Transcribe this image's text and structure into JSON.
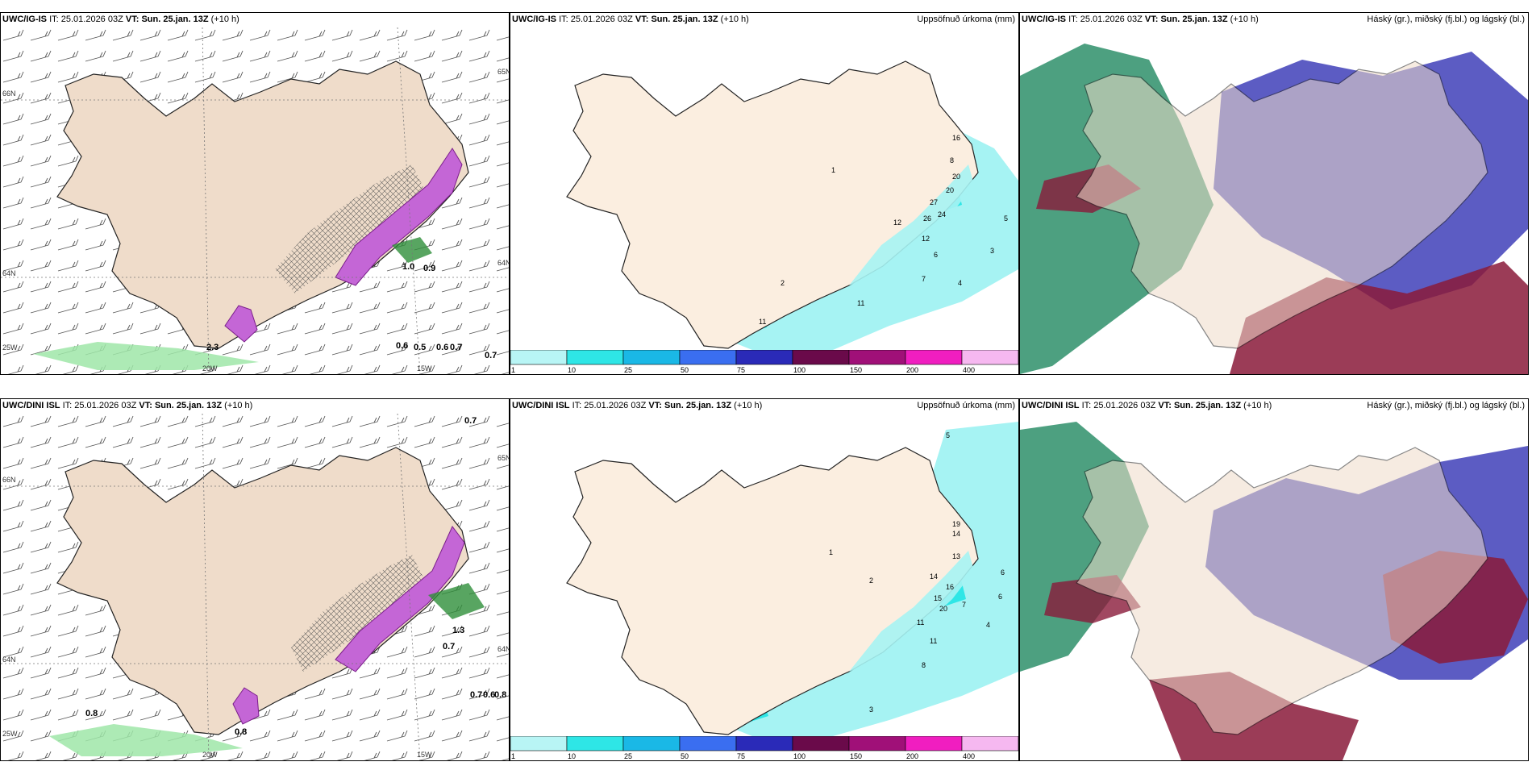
{
  "panels": [
    {
      "model": "UWC/IG-IS",
      "it_label": "IT:",
      "it_value": "25.01.2026 03Z",
      "vt_label": "VT:",
      "vt_value": "Sun. 25.jan. 13Z",
      "lead": "(+10 h)",
      "right_title": "",
      "axis": {
        "lat_n": "66N",
        "lat_s": "64N",
        "lat_sw": "25W",
        "lon_w": "20W",
        "lon_e": "15W",
        "lat_e": "65N",
        "lat_e2": "64N"
      },
      "values": [
        "0.6",
        "0.5",
        "0.7",
        "0.6",
        "0.7",
        "1.0",
        "0.9",
        "2.3"
      ]
    },
    {
      "model": "UWC/IG-IS",
      "it_label": "IT:",
      "it_value": "25.01.2026 03Z",
      "vt_label": "VT:",
      "vt_value": "Sun. 25.jan. 13Z",
      "lead": "(+10 h)",
      "right_title": "Uppsöfnuð úrkoma (mm)",
      "values": [
        "1",
        "2",
        "3",
        "4",
        "5",
        "6",
        "7",
        "8",
        "11",
        "12",
        "16",
        "20",
        "24",
        "26",
        "27",
        "20",
        "12",
        "11"
      ]
    },
    {
      "model": "UWC/IG-IS",
      "it_label": "IT:",
      "it_value": "25.01.2026 03Z",
      "vt_label": "VT:",
      "vt_value": "Sun. 25.jan. 13Z",
      "lead": "(+10 h)",
      "right_title": "Háský (gr.), miðský (fj.bl.) og lágský (bl.)"
    },
    {
      "model": "UWC/DINI ISL",
      "it_label": "IT:",
      "it_value": "25.01.2026 03Z",
      "vt_label": "VT:",
      "vt_value": "Sun. 25.jan. 13Z",
      "lead": "(+10 h)",
      "right_title": "",
      "axis": {
        "lat_n": "66N",
        "lat_s": "64N",
        "lat_sw": "25W",
        "lon_w": "20W",
        "lon_e": "15W",
        "lat_e": "65N",
        "lat_e2": "64N"
      },
      "values": [
        "0.7",
        "0.8",
        "0.7",
        "0.6",
        "0.8",
        "0.8",
        "1.3",
        "0.7"
      ]
    },
    {
      "model": "UWC/DINI ISL",
      "it_label": "IT:",
      "it_value": "25.01.2026 03Z",
      "vt_label": "VT:",
      "vt_value": "Sun. 25.jan. 13Z",
      "lead": "(+10 h)",
      "right_title": "Uppsöfnuð úrkoma (mm)",
      "values": [
        "1",
        "2",
        "3",
        "4",
        "5",
        "6",
        "7",
        "8",
        "11",
        "13",
        "14",
        "15",
        "16",
        "19",
        "20",
        "14",
        "11",
        "6"
      ]
    },
    {
      "model": "UWC/DINI ISL",
      "it_label": "IT:",
      "it_value": "25.01.2026 03Z",
      "vt_label": "VT:",
      "vt_value": "Sun. 25.jan. 13Z",
      "lead": "(+10 h)",
      "right_title": "Háský (gr.), miðský (fj.bl.) og lágský (bl.)"
    }
  ],
  "colorbar": {
    "ticks": [
      "1",
      "10",
      "25",
      "50",
      "75",
      "100",
      "150",
      "200",
      "400"
    ],
    "colors": [
      "#b8f5f5",
      "#2ee6e6",
      "#1ab8e6",
      "#3a6ef0",
      "#2a2ab8",
      "#6a0a4a",
      "#a01078",
      "#f01ec0",
      "#f6b8f0"
    ]
  },
  "colors": {
    "land": "#efdcca",
    "land_precip_panel": "#fbeee0",
    "snow_purple": "#c466d6",
    "rain_green": "#9fe6a8",
    "precip_cyan": "#a6f3f3",
    "cloud_high": "#2e8f6a",
    "cloud_mid": "#4040b8",
    "cloud_low": "#8a1a3a"
  }
}
